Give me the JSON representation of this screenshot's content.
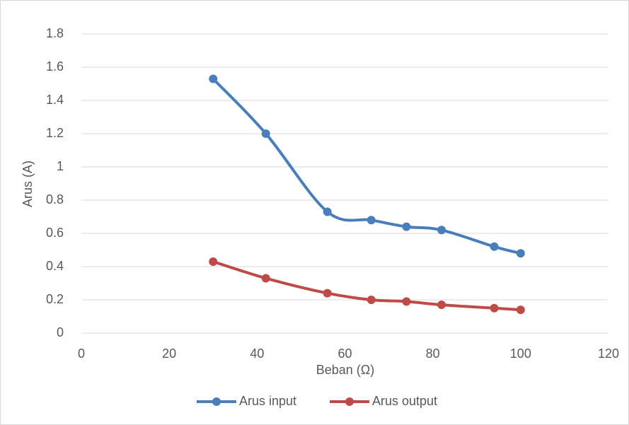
{
  "chart_data": {
    "type": "line",
    "x_label": "Beban (Ω)",
    "y_label": "Arus (A)",
    "x": [
      30,
      42,
      56,
      66,
      74,
      82,
      94,
      100
    ],
    "series": [
      {
        "name": "Arus input",
        "color": "#4a7ebb",
        "values": [
          1.53,
          1.2,
          0.73,
          0.68,
          0.64,
          0.62,
          0.52,
          0.48
        ]
      },
      {
        "name": "Arus output",
        "color": "#be4b48",
        "values": [
          0.43,
          0.33,
          0.24,
          0.2,
          0.19,
          0.17,
          0.15,
          0.14
        ]
      }
    ],
    "xlim": [
      0,
      120
    ],
    "xticks": [
      0,
      20,
      40,
      60,
      80,
      100,
      120
    ],
    "ylim": [
      0,
      1.8
    ],
    "yticks": [
      0,
      0.2,
      0.4,
      0.6,
      0.8,
      1,
      1.2,
      1.4,
      1.6,
      1.8
    ],
    "grid": true,
    "smooth": true,
    "legend": "bottom"
  }
}
